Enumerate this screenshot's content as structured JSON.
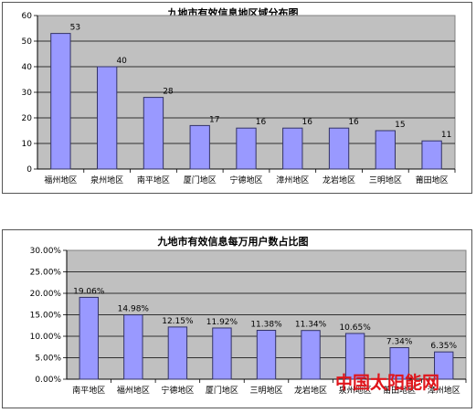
{
  "chart_data": [
    {
      "type": "bar",
      "title": "九地市有效信息地区域分布图",
      "categories": [
        "福州地区",
        "泉州地区",
        "南平地区",
        "厦门地区",
        "宁德地区",
        "漳州地区",
        "龙岩地区",
        "三明地区",
        "莆田地区"
      ],
      "values": [
        53,
        40,
        28,
        17,
        16,
        16,
        16,
        15,
        11
      ],
      "value_labels": [
        "53",
        "40",
        "28",
        "17",
        "16",
        "16",
        "16",
        "15",
        "11"
      ],
      "y_ticks": [
        "0",
        "10",
        "20",
        "30",
        "40",
        "50",
        "60"
      ],
      "ylim": [
        0,
        60
      ],
      "grid": true,
      "legend": "none",
      "colors": {
        "bar": "#9999ff",
        "bar_edge": "#333366",
        "plot_bg": "#c0c0c0"
      }
    },
    {
      "type": "bar",
      "title": "九地市有效信息每万用户数占比图",
      "categories": [
        "南平地区",
        "福州地区",
        "宁德地区",
        "厦门地区",
        "三明地区",
        "龙岩地区",
        "泉州地区",
        "莆田地区",
        "漳州地区"
      ],
      "values": [
        19.06,
        14.98,
        12.15,
        11.92,
        11.38,
        11.34,
        10.65,
        7.34,
        6.35
      ],
      "value_labels": [
        "19.06%",
        "14.98%",
        "12.15%",
        "11.92%",
        "11.38%",
        "11.34%",
        "10.65%",
        "7.34%",
        "6.35%"
      ],
      "y_ticks": [
        "0.00%",
        "5.00%",
        "10.00%",
        "15.00%",
        "20.00%",
        "25.00%",
        "30.00%"
      ],
      "ylim": [
        0,
        30
      ],
      "grid": true,
      "legend": "none",
      "colors": {
        "bar": "#9999ff",
        "bar_edge": "#333366",
        "plot_bg": "#c0c0c0"
      }
    }
  ],
  "watermark": {
    "text": "中国太阳能网",
    "color": "#e0161c"
  }
}
